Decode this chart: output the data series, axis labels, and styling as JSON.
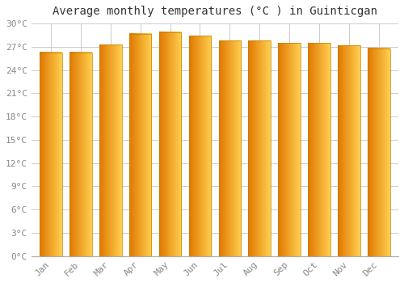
{
  "title": "Average monthly temperatures (°C ) in Guinticgan",
  "months": [
    "Jan",
    "Feb",
    "Mar",
    "Apr",
    "May",
    "Jun",
    "Jul",
    "Aug",
    "Sep",
    "Oct",
    "Nov",
    "Dec"
  ],
  "values": [
    26.3,
    26.3,
    27.3,
    28.7,
    28.9,
    28.4,
    27.8,
    27.8,
    27.5,
    27.5,
    27.2,
    26.8
  ],
  "bar_color_left": "#E07800",
  "bar_color_right": "#FFD050",
  "background_color": "#FFFFFF",
  "grid_color": "#CCCCCC",
  "ylim": [
    0,
    30
  ],
  "yticks": [
    0,
    3,
    6,
    9,
    12,
    15,
    18,
    21,
    24,
    27,
    30
  ],
  "ytick_labels": [
    "0°C",
    "3°C",
    "6°C",
    "9°C",
    "12°C",
    "15°C",
    "18°C",
    "21°C",
    "24°C",
    "27°C",
    "30°C"
  ],
  "title_fontsize": 10,
  "tick_fontsize": 8,
  "axis_label_color": "#888888",
  "bar_width": 0.75,
  "bar_edge_color": "#C08000",
  "bar_edge_width": 0.5
}
